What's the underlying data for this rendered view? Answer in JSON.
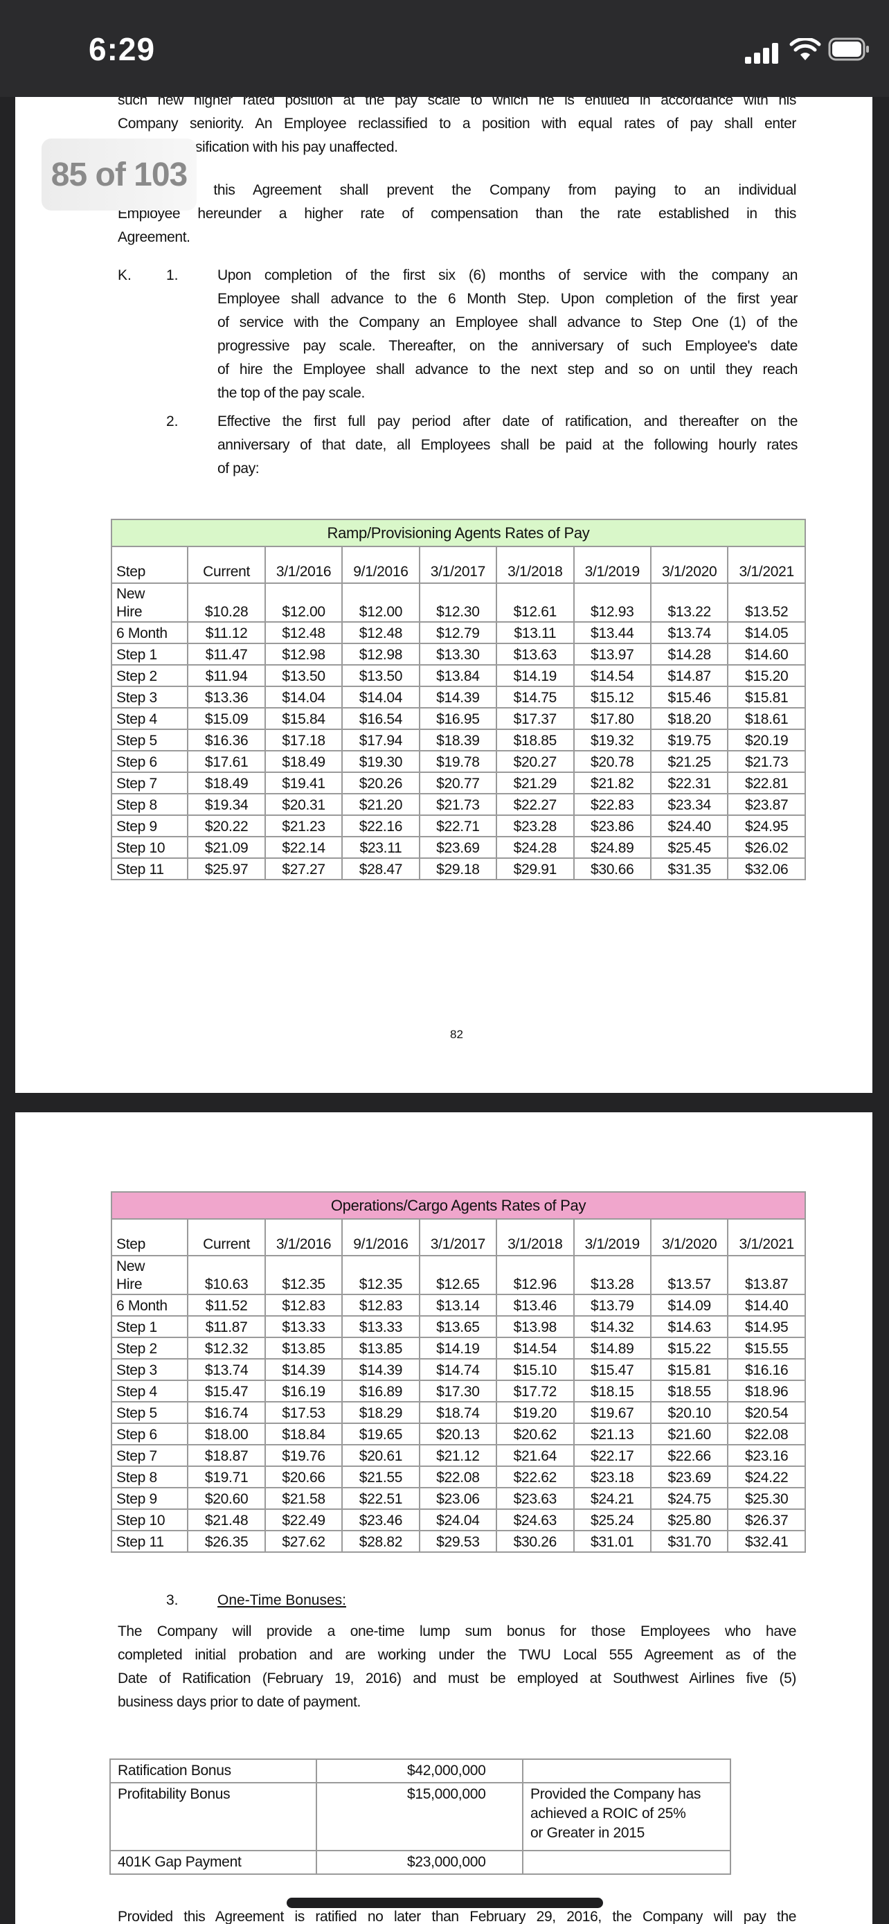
{
  "status_bar": {
    "time": "6:29",
    "icons": [
      "cellular-signal-icon",
      "wifi-icon",
      "battery-icon"
    ]
  },
  "viewer": {
    "page_indicator": "85 of 103"
  },
  "page1": {
    "intro_lines": [
      "such new higher rated position at the pay scale to which he is entitled in accordance with his",
      "Company seniority. An Employee reclassified to a position with equal rates of pay shall enter",
      "the new classification with his pay unaffected."
    ],
    "para2_lines": [
      "Nothing in this Agreement shall prevent the Company from paying to an individual",
      "Employee hereunder a higher rate of compensation than the rate established in this",
      "Agreement."
    ],
    "section_k": {
      "label": "K.",
      "item1_num": "1.",
      "item1_lines": [
        "Upon completion of the first six (6) months of service with the company an",
        "Employee shall advance to the 6 Month Step. Upon completion of the first year",
        "of service with the Company an Employee shall advance to Step One (1) of the",
        "progressive pay scale. Thereafter, on the anniversary of such Employee's date",
        "of hire the Employee shall advance to the next step and so on until they reach",
        "the top of the pay scale."
      ],
      "item2_num": "2.",
      "item2_lines": [
        "Effective the first full pay period after date of ratification, and thereafter on the",
        "anniversary of that date, all Employees shall be paid at the following hourly rates",
        "of pay:"
      ]
    },
    "page_number": "82"
  },
  "ramp_table": {
    "title": "Ramp/Provisioning Agents Rates of Pay",
    "title_color": "#d9f7c9",
    "columns": [
      "Step",
      "Current",
      "3/1/2016",
      "9/1/2016",
      "3/1/2017",
      "3/1/2018",
      "3/1/2019",
      "3/1/2020",
      "3/1/2021"
    ],
    "rows": [
      [
        "New Hire",
        "$10.28",
        "$12.00",
        "$12.00",
        "$12.30",
        "$12.61",
        "$12.93",
        "$13.22",
        "$13.52"
      ],
      [
        "6 Month",
        "$11.12",
        "$12.48",
        "$12.48",
        "$12.79",
        "$13.11",
        "$13.44",
        "$13.74",
        "$14.05"
      ],
      [
        "Step 1",
        "$11.47",
        "$12.98",
        "$12.98",
        "$13.30",
        "$13.63",
        "$13.97",
        "$14.28",
        "$14.60"
      ],
      [
        "Step 2",
        "$11.94",
        "$13.50",
        "$13.50",
        "$13.84",
        "$14.19",
        "$14.54",
        "$14.87",
        "$15.20"
      ],
      [
        "Step 3",
        "$13.36",
        "$14.04",
        "$14.04",
        "$14.39",
        "$14.75",
        "$15.12",
        "$15.46",
        "$15.81"
      ],
      [
        "Step 4",
        "$15.09",
        "$15.84",
        "$16.54",
        "$16.95",
        "$17.37",
        "$17.80",
        "$18.20",
        "$18.61"
      ],
      [
        "Step 5",
        "$16.36",
        "$17.18",
        "$17.94",
        "$18.39",
        "$18.85",
        "$19.32",
        "$19.75",
        "$20.19"
      ],
      [
        "Step 6",
        "$17.61",
        "$18.49",
        "$19.30",
        "$19.78",
        "$20.27",
        "$20.78",
        "$21.25",
        "$21.73"
      ],
      [
        "Step 7",
        "$18.49",
        "$19.41",
        "$20.26",
        "$20.77",
        "$21.29",
        "$21.82",
        "$22.31",
        "$22.81"
      ],
      [
        "Step 8",
        "$19.34",
        "$20.31",
        "$21.20",
        "$21.73",
        "$22.27",
        "$22.83",
        "$23.34",
        "$23.87"
      ],
      [
        "Step 9",
        "$20.22",
        "$21.23",
        "$22.16",
        "$22.71",
        "$23.28",
        "$23.86",
        "$24.40",
        "$24.95"
      ],
      [
        "Step 10",
        "$21.09",
        "$22.14",
        "$23.11",
        "$23.69",
        "$24.28",
        "$24.89",
        "$25.45",
        "$26.02"
      ],
      [
        "Step 11",
        "$25.97",
        "$27.27",
        "$28.47",
        "$29.18",
        "$29.91",
        "$30.66",
        "$31.35",
        "$32.06"
      ]
    ]
  },
  "ops_table": {
    "title": "Operations/Cargo Agents Rates of Pay",
    "title_color": "#f0a6cc",
    "columns": [
      "Step",
      "Current",
      "3/1/2016",
      "9/1/2016",
      "3/1/2017",
      "3/1/2018",
      "3/1/2019",
      "3/1/2020",
      "3/1/2021"
    ],
    "rows": [
      [
        "New Hire",
        "$10.63",
        "$12.35",
        "$12.35",
        "$12.65",
        "$12.96",
        "$13.28",
        "$13.57",
        "$13.87"
      ],
      [
        "6 Month",
        "$11.52",
        "$12.83",
        "$12.83",
        "$13.14",
        "$13.46",
        "$13.79",
        "$14.09",
        "$14.40"
      ],
      [
        "Step 1",
        "$11.87",
        "$13.33",
        "$13.33",
        "$13.65",
        "$13.98",
        "$14.32",
        "$14.63",
        "$14.95"
      ],
      [
        "Step 2",
        "$12.32",
        "$13.85",
        "$13.85",
        "$14.19",
        "$14.54",
        "$14.89",
        "$15.22",
        "$15.55"
      ],
      [
        "Step 3",
        "$13.74",
        "$14.39",
        "$14.39",
        "$14.74",
        "$15.10",
        "$15.47",
        "$15.81",
        "$16.16"
      ],
      [
        "Step 4",
        "$15.47",
        "$16.19",
        "$16.89",
        "$17.30",
        "$17.72",
        "$18.15",
        "$18.55",
        "$18.96"
      ],
      [
        "Step 5",
        "$16.74",
        "$17.53",
        "$18.29",
        "$18.74",
        "$19.20",
        "$19.67",
        "$20.10",
        "$20.54"
      ],
      [
        "Step 6",
        "$18.00",
        "$18.84",
        "$19.65",
        "$20.13",
        "$20.62",
        "$21.13",
        "$21.60",
        "$22.08"
      ],
      [
        "Step 7",
        "$18.87",
        "$19.76",
        "$20.61",
        "$21.12",
        "$21.64",
        "$22.17",
        "$22.66",
        "$23.16"
      ],
      [
        "Step 8",
        "$19.71",
        "$20.66",
        "$21.55",
        "$22.08",
        "$22.62",
        "$23.18",
        "$23.69",
        "$24.22"
      ],
      [
        "Step 9",
        "$20.60",
        "$21.58",
        "$22.51",
        "$23.06",
        "$23.63",
        "$24.21",
        "$24.75",
        "$25.30"
      ],
      [
        "Step 10",
        "$21.48",
        "$22.49",
        "$23.46",
        "$24.04",
        "$24.63",
        "$25.24",
        "$25.80",
        "$26.37"
      ],
      [
        "Step 11",
        "$26.35",
        "$27.62",
        "$28.82",
        "$29.53",
        "$30.26",
        "$31.01",
        "$31.70",
        "$32.41"
      ]
    ]
  },
  "page2": {
    "section3_num": "3.",
    "section3_heading": "One-Time Bonuses:",
    "bonus_para_lines": [
      "The Company will provide a one-time lump sum bonus for those Employees who have",
      "completed initial probation and are working under the TWU Local 555 Agreement as of the",
      "Date of Ratification (February 19, 2016) and must be employed at Southwest Airlines five (5)",
      "business days prior to date of payment."
    ],
    "bonus_table": [
      {
        "name": "Ratification Bonus",
        "amount": "$42,000,000",
        "note": ""
      },
      {
        "name": "Profitability Bonus",
        "amount": "$15,000,000",
        "note": "Provided the Company has achieved a ROIC of 25% or Greater in 2015"
      },
      {
        "name": "401K Gap Payment",
        "amount": "$23,000,000",
        "note": ""
      }
    ],
    "trailing_line": "Provided this Agreement is ratified no later than February 29, 2016, the Company will pay the"
  }
}
